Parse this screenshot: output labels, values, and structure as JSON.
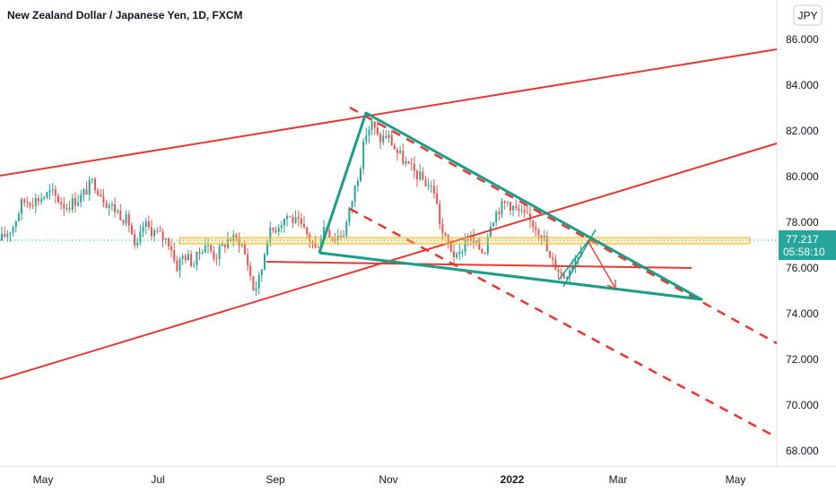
{
  "header": {
    "title": "New Zealand Dollar / Japanese Yen, 1D, FXCM",
    "currency_button": "JPY"
  },
  "chart_data": {
    "type": "candlestick",
    "title": "New Zealand Dollar / Japanese Yen, 1D, FXCM",
    "y_axis": {
      "ticks": [
        "86.000",
        "84.000",
        "82.000",
        "80.000",
        "78.000",
        "76.000",
        "74.000",
        "72.000",
        "70.000",
        "68.000"
      ],
      "range": [
        67.3,
        87.0
      ]
    },
    "x_axis": {
      "ticks": [
        {
          "label": "May",
          "bold": false
        },
        {
          "label": "Jul",
          "bold": false
        },
        {
          "label": "Sep",
          "bold": false
        },
        {
          "label": "Nov",
          "bold": false
        },
        {
          "label": "2022",
          "bold": true
        },
        {
          "label": "Mar",
          "bold": false
        },
        {
          "label": "May",
          "bold": false
        }
      ]
    },
    "current_price": {
      "value": "77.217",
      "countdown": "05:58:10",
      "color": "#26a69a"
    },
    "price_path": [
      [
        0,
        77.2
      ],
      [
        14,
        77.8
      ],
      [
        25,
        78.9
      ],
      [
        42,
        79.0
      ],
      [
        57,
        79.3
      ],
      [
        73,
        78.7
      ],
      [
        90,
        79.1
      ],
      [
        104,
        79.8
      ],
      [
        118,
        78.9
      ],
      [
        133,
        78.4
      ],
      [
        145,
        77.9
      ],
      [
        151,
        76.6
      ],
      [
        160,
        77.9
      ],
      [
        175,
        77.5
      ],
      [
        190,
        77.1
      ],
      [
        196,
        76.0
      ],
      [
        205,
        76.6
      ],
      [
        216,
        76.2
      ],
      [
        228,
        77.1
      ],
      [
        240,
        76.5
      ],
      [
        255,
        77.3
      ],
      [
        268,
        77.2
      ],
      [
        276,
        76.2
      ],
      [
        283,
        75.0
      ],
      [
        290,
        75.6
      ],
      [
        298,
        77.4
      ],
      [
        310,
        77.9
      ],
      [
        320,
        78.3
      ],
      [
        333,
        77.9
      ],
      [
        345,
        77.3
      ],
      [
        352,
        76.8
      ],
      [
        362,
        77.9
      ],
      [
        372,
        77.3
      ],
      [
        384,
        77.6
      ],
      [
        394,
        79.2
      ],
      [
        402,
        80.6
      ],
      [
        408,
        81.9
      ],
      [
        415,
        82.3
      ],
      [
        422,
        81.6
      ],
      [
        432,
        81.8
      ],
      [
        442,
        81.1
      ],
      [
        456,
        80.4
      ],
      [
        470,
        79.9
      ],
      [
        484,
        79.4
      ],
      [
        490,
        78.1
      ],
      [
        494,
        77.4
      ],
      [
        502,
        76.9
      ],
      [
        510,
        76.3
      ],
      [
        520,
        77.4
      ],
      [
        530,
        77.0
      ],
      [
        540,
        76.7
      ],
      [
        546,
        78.0
      ],
      [
        556,
        78.6
      ],
      [
        566,
        78.9
      ],
      [
        576,
        78.5
      ],
      [
        586,
        78.2
      ],
      [
        596,
        77.9
      ],
      [
        606,
        77.4
      ],
      [
        612,
        76.4
      ],
      [
        622,
        76.0
      ],
      [
        628,
        75.6
      ],
      [
        636,
        76.1
      ],
      [
        644,
        76.6
      ],
      [
        650,
        77.2
      ]
    ],
    "up_color": "#26a69a",
    "down_color": "#ef5350"
  },
  "colors": {
    "bull": "#26a69a",
    "bear": "#ef5350",
    "trendline": "#e53935",
    "triangle": "#1b9e89",
    "zone": "#f5b027",
    "current_line": "#26a69a"
  }
}
